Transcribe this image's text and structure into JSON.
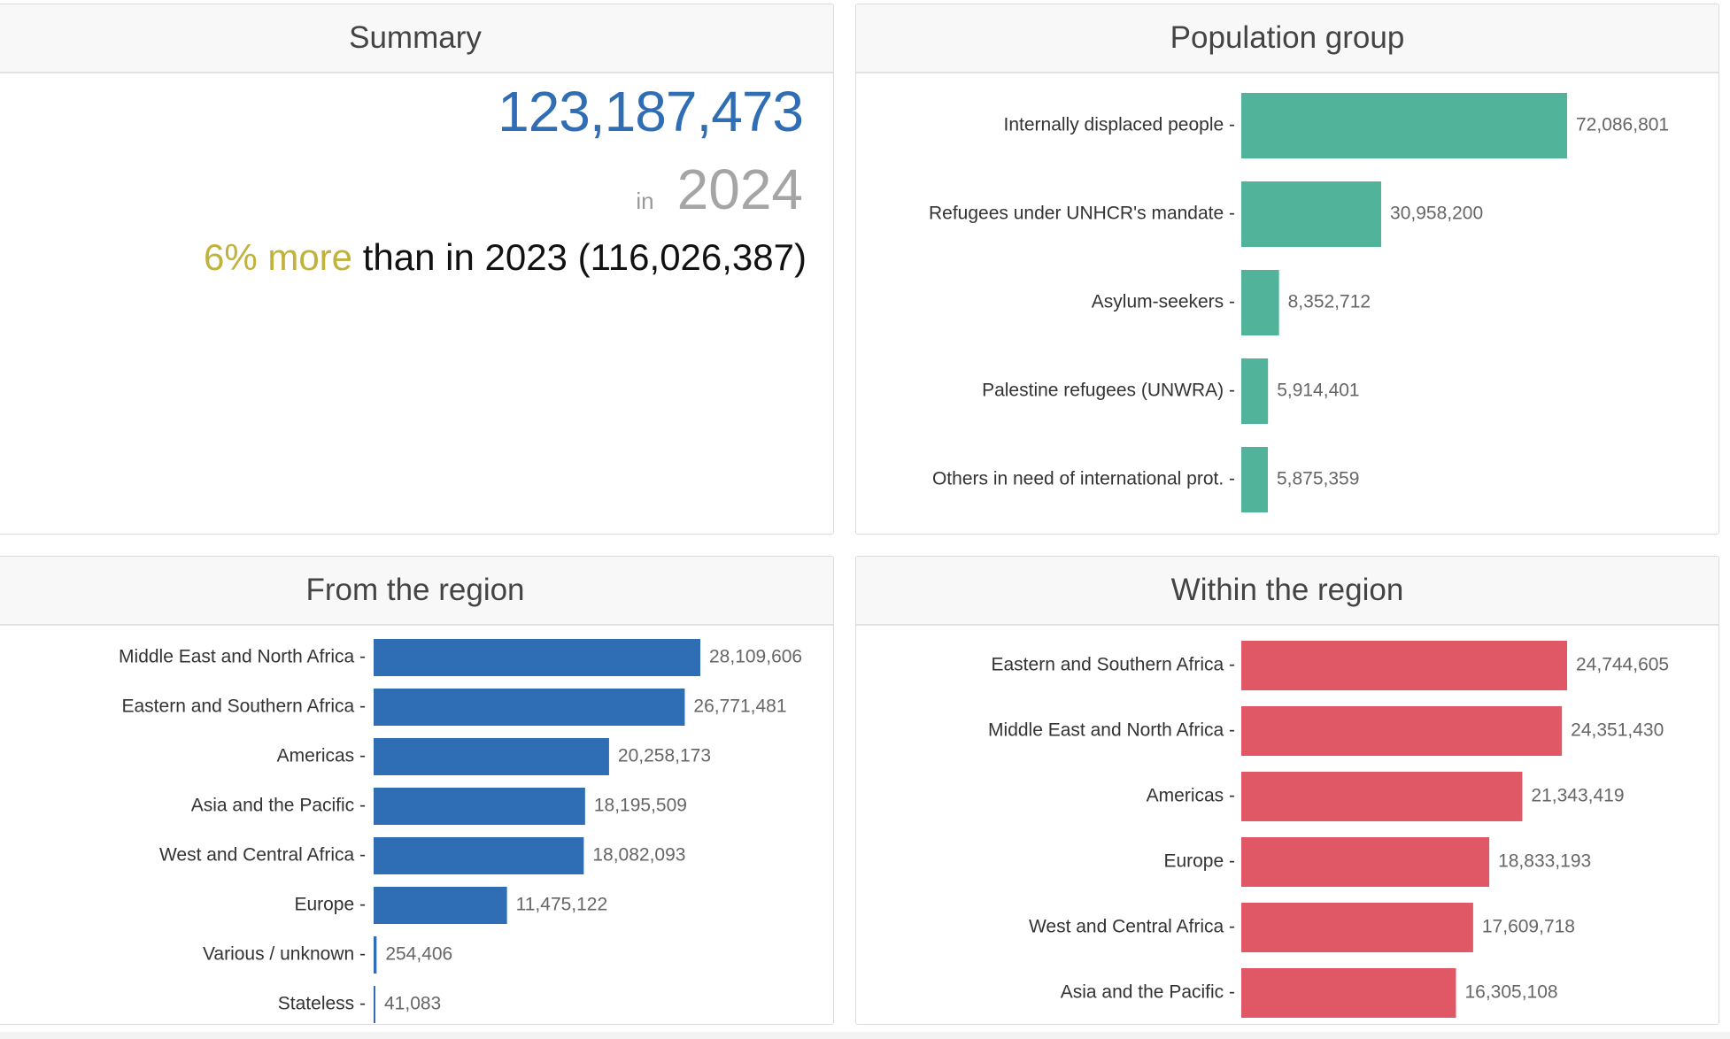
{
  "summary": {
    "title": "Summary",
    "total": "123,187,473",
    "in_label": "in",
    "year": "2024",
    "change_pct": "6% more",
    "change_rest": "than in 2023 (116,026,387)"
  },
  "colors": {
    "population_bar": "#52b39b",
    "from_bar": "#2f6db5",
    "within_bar": "#e05766",
    "total_text": "#2f6db5",
    "change_text": "#c0b23a"
  },
  "chart_data": [
    {
      "type": "bar",
      "orientation": "horizontal",
      "title": "Population group",
      "categories": [
        "Internally displaced people",
        "Refugees under UNHCR's mandate",
        "Asylum-seekers",
        "Palestine refugees (UNWRA)",
        "Others in need of international prot."
      ],
      "values": [
        72086801,
        30958200,
        8352712,
        5914401,
        5875359
      ],
      "value_labels": [
        "72,086,801",
        "30,958,200",
        "8,352,712",
        "5,914,401",
        "5,875,359"
      ]
    },
    {
      "type": "bar",
      "orientation": "horizontal",
      "title": "From the region",
      "categories": [
        "Middle East and North Africa",
        "Eastern and Southern Africa",
        "Americas",
        "Asia and the Pacific",
        "West and Central Africa",
        "Europe",
        "Various / unknown",
        "Stateless"
      ],
      "values": [
        28109606,
        26771481,
        20258173,
        18195509,
        18082093,
        11475122,
        254406,
        41083
      ],
      "value_labels": [
        "28,109,606",
        "26,771,481",
        "20,258,173",
        "18,195,509",
        "18,082,093",
        "11,475,122",
        "254,406",
        "41,083"
      ]
    },
    {
      "type": "bar",
      "orientation": "horizontal",
      "title": "Within the region",
      "categories": [
        "Eastern and Southern Africa",
        "Middle East and North Africa",
        "Americas",
        "Europe",
        "West and Central Africa",
        "Asia and the Pacific"
      ],
      "values": [
        24744605,
        24351430,
        21343419,
        18833193,
        17609718,
        16305108
      ],
      "value_labels": [
        "24,744,605",
        "24,351,430",
        "21,343,419",
        "18,833,193",
        "17,609,718",
        "16,305,108"
      ]
    }
  ]
}
